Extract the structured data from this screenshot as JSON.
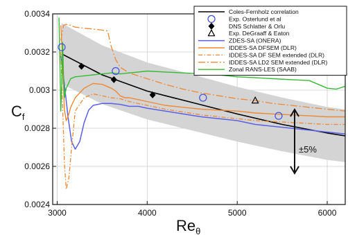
{
  "chart_data": {
    "type": "line",
    "xlabel": "Re",
    "xlabel_sub": "θ",
    "ylabel": "C",
    "ylabel_sub": "f",
    "xlim": [
      2950,
      6200
    ],
    "ylim": [
      0.0024,
      0.0034
    ],
    "xticks": [
      3000,
      4000,
      5000,
      6000
    ],
    "xtick_labels": [
      "3000",
      "4000",
      "5000",
      "6000"
    ],
    "yticks": [
      0.0024,
      0.0026,
      0.0028,
      0.003,
      0.0032,
      0.0034
    ],
    "ytick_labels": [
      "0.0024",
      "0.0026",
      "0.0028",
      "0.003",
      "0.0032",
      "0.0034"
    ],
    "grid": true,
    "legend_position": "top-right",
    "band_annotation": "±5%",
    "band": {
      "x": [
        3050,
        3500,
        4000,
        4500,
        5000,
        5500,
        6000,
        6200
      ],
      "lower": [
        0.003033,
        0.002927,
        0.002846,
        0.002788,
        0.00273,
        0.002679,
        0.002634,
        0.002622
      ],
      "upper": [
        0.003351,
        0.003235,
        0.003145,
        0.003082,
        0.003017,
        0.002961,
        0.002912,
        0.002898
      ]
    },
    "series": [
      {
        "name": "Coles-Fernholz correlation",
        "color": "#000000",
        "style": "solid",
        "width": 1.6,
        "x": [
          3050,
          3500,
          4000,
          4500,
          5000,
          5500,
          6000,
          6200
        ],
        "y": [
          0.00319,
          0.00308,
          0.002995,
          0.002935,
          0.002875,
          0.00282,
          0.002775,
          0.00276
        ]
      },
      {
        "name": "Exp. Osterlund et al",
        "kind": "marker",
        "marker": "circle",
        "color": "#4455dd",
        "x": [
          3050,
          3650,
          4620,
          5460
        ],
        "y": [
          0.003225,
          0.0031,
          0.00296,
          0.002865
        ]
      },
      {
        "name": "DNS Schlatter & Orlu",
        "kind": "marker",
        "marker": "diamond",
        "color": "#000000",
        "x": [
          3270,
          3630,
          4060
        ],
        "y": [
          0.003125,
          0.003055,
          0.002975
        ]
      },
      {
        "name": "Exp. DeGraaff & Eaton",
        "kind": "marker",
        "marker": "triangle",
        "color": "#000000",
        "x": [
          5200
        ],
        "y": [
          0.002945
        ]
      },
      {
        "name": "ZDES-SA (ONERA)",
        "color": "#5a5fe6",
        "style": "solid",
        "width": 1.5,
        "x": [
          3040,
          3080,
          3120,
          3160,
          3200,
          3250,
          3300,
          3350,
          3400,
          3450,
          3500,
          3550,
          3600,
          3700,
          3800,
          3900,
          4000,
          4200,
          4400,
          4600,
          4800,
          5000,
          5200,
          5400,
          5600,
          5800,
          6000,
          6200
        ],
        "y": [
          0.00318,
          0.00303,
          0.00286,
          0.00273,
          0.00269,
          0.00273,
          0.00283,
          0.002895,
          0.00292,
          0.002925,
          0.00293,
          0.00293,
          0.00293,
          0.002925,
          0.002915,
          0.002915,
          0.002905,
          0.00289,
          0.002875,
          0.00286,
          0.00285,
          0.00284,
          0.00282,
          0.00281,
          0.0028,
          0.00279,
          0.00278,
          0.00277
        ]
      },
      {
        "name": "IDDES-SA DFSEM (DLR)",
        "color": "#ee8833",
        "style": "solid",
        "width": 1.4,
        "x": [
          3040,
          3060,
          3080,
          3100,
          3120,
          3150,
          3200,
          3300,
          3400,
          3500,
          3600,
          3650,
          3700,
          3750,
          3800,
          3900,
          4000,
          4200,
          4400,
          4600,
          4800,
          5000,
          5200,
          5400,
          5600,
          5800,
          6000,
          6200
        ],
        "y": [
          0.00334,
          0.00315,
          0.0029,
          0.00284,
          0.00286,
          0.00291,
          0.00296,
          0.00301,
          0.003035,
          0.00303,
          0.00301,
          0.002995,
          0.00297,
          0.00296,
          0.00296,
          0.00295,
          0.00294,
          0.00292,
          0.00291,
          0.0029,
          0.002895,
          0.00289,
          0.00288,
          0.002875,
          0.00287,
          0.002865,
          0.00286,
          0.00286
        ]
      },
      {
        "name": "IDDES-SA DF SEM extended (DLR)",
        "color": "#ee8833",
        "style": "dashdot",
        "width": 1.3,
        "x": [
          3040,
          3060,
          3080,
          3100,
          3130,
          3160,
          3200,
          3300,
          3400,
          3500,
          3600,
          3700,
          3800,
          4000,
          4200,
          4400,
          4600,
          4800,
          5000,
          5200,
          5400,
          5600,
          5800,
          6000,
          6200
        ],
        "y": [
          0.0032,
          0.00292,
          0.00262,
          0.00248,
          0.00254,
          0.0027,
          0.00289,
          0.00296,
          0.00298,
          0.00297,
          0.00296,
          0.002955,
          0.00294,
          0.00292,
          0.0029,
          0.002885,
          0.00287,
          0.00286,
          0.00285,
          0.00284,
          0.002835,
          0.00283,
          0.002825,
          0.00282,
          0.00282
        ]
      },
      {
        "name": "IDDES-SA LD2 SEM extended (DLR)",
        "color": "#ee8833",
        "style": "longdashdot",
        "width": 1.3,
        "x": [
          3040,
          3070,
          3100,
          3150,
          3200,
          3300,
          3400,
          3500,
          3560,
          3600,
          3650,
          3700,
          3800,
          4000,
          4200,
          4400,
          4600,
          4800,
          5000,
          5200,
          5400,
          5600,
          5800,
          6000,
          6200
        ],
        "y": [
          0.00326,
          0.00334,
          0.003345,
          0.00334,
          0.00333,
          0.003325,
          0.00332,
          0.003315,
          0.00331,
          0.00323,
          0.00316,
          0.00312,
          0.00309,
          0.00306,
          0.00303,
          0.003005,
          0.002985,
          0.00297,
          0.002955,
          0.002945,
          0.00293,
          0.00292,
          0.00291,
          0.0029,
          0.00289
        ]
      },
      {
        "name": "Zonal RANS-LES (SAAB)",
        "color": "#33bb33",
        "style": "solid",
        "width": 1.4,
        "x": [
          3020,
          3030,
          3040,
          3050,
          3060,
          3070,
          3080,
          3100,
          3150,
          3200,
          3300,
          3400,
          3500,
          3600,
          3700,
          3800,
          3900,
          4000,
          4200,
          4400,
          4600,
          4800,
          5000,
          5200,
          5400,
          5600,
          5800,
          6000,
          6100,
          6200
        ],
        "y": [
          0.00338,
          0.00315,
          0.00289,
          0.00302,
          0.00325,
          0.00308,
          0.00296,
          0.00301,
          0.00306,
          0.00307,
          0.003075,
          0.00308,
          0.003085,
          0.00309,
          0.003085,
          0.00309,
          0.003095,
          0.0031,
          0.003095,
          0.00309,
          0.003085,
          0.00308,
          0.00307,
          0.003065,
          0.00306,
          0.003055,
          0.00305,
          0.00301,
          0.003005,
          0.00302
        ]
      }
    ]
  }
}
